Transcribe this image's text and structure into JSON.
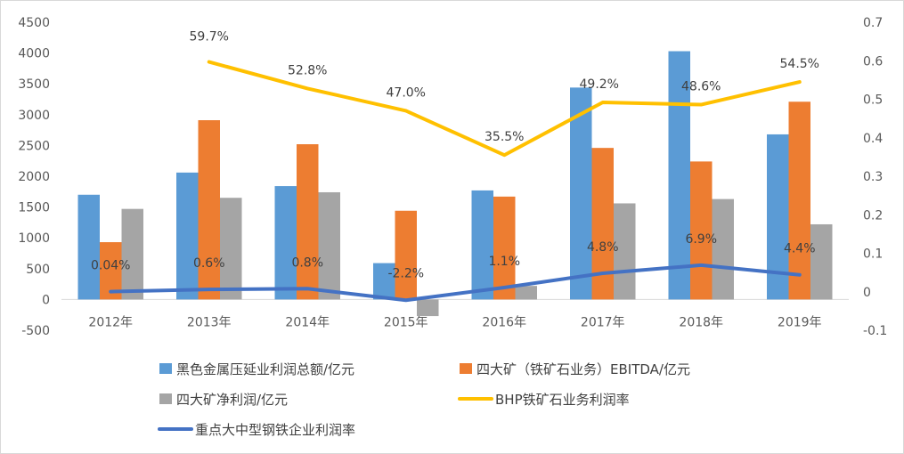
{
  "chart_data": {
    "type": "bar",
    "categories": [
      "2012年",
      "2013年",
      "2014年",
      "2015年",
      "2016年",
      "2017年",
      "2018年",
      "2019年"
    ],
    "series": [
      {
        "name": "黑色金属压延业利润总额/亿元",
        "type": "bar",
        "axis": "left",
        "color": "#5b9bd5",
        "values": [
          1700,
          2060,
          1840,
          590,
          1770,
          3440,
          4030,
          2680
        ]
      },
      {
        "name": "四大矿（铁矿石业务）EBITDA/亿元",
        "type": "bar",
        "axis": "left",
        "color": "#ed7d31",
        "values": [
          930,
          2910,
          2520,
          1440,
          1670,
          2460,
          2240,
          3210
        ]
      },
      {
        "name": "四大矿净利润/亿元",
        "type": "bar",
        "axis": "left",
        "color": "#a5a5a5",
        "values": [
          1470,
          1650,
          1740,
          -270,
          220,
          1560,
          1630,
          1220
        ]
      },
      {
        "name": "BHP铁矿石业务利润率",
        "type": "line",
        "axis": "right",
        "color": "#ffc000",
        "values": [
          null,
          0.597,
          0.528,
          0.47,
          0.355,
          0.492,
          0.486,
          0.545
        ],
        "labels": [
          "",
          "59.7%",
          "52.8%",
          "47.0%",
          "35.5%",
          "49.2%",
          "48.6%",
          "54.5%"
        ]
      },
      {
        "name": "重点大中型钢铁企业利润率",
        "type": "line",
        "axis": "right",
        "color": "#4472c4",
        "values": [
          0.0004,
          0.006,
          0.008,
          -0.022,
          0.011,
          0.048,
          0.069,
          0.044
        ],
        "labels": [
          "0.04%",
          "0.6%",
          "0.8%",
          "-2.2%",
          "1.1%",
          "4.8%",
          "6.9%",
          "4.4%"
        ]
      }
    ],
    "left_axis": {
      "min": -500,
      "max": 4500,
      "step": 500,
      "ticks": [
        "-500",
        "0",
        "500",
        "1000",
        "1500",
        "2000",
        "2500",
        "3000",
        "3500",
        "4000",
        "4500"
      ]
    },
    "right_axis": {
      "min": -0.1,
      "max": 0.7,
      "step": 0.1,
      "ticks": [
        "-0.1",
        "0",
        "0.1",
        "0.2",
        "0.3",
        "0.4",
        "0.5",
        "0.6",
        "0.7"
      ]
    },
    "title": "",
    "xlabel": "",
    "ylabel": "",
    "grid": false,
    "legend_position": "bottom"
  }
}
